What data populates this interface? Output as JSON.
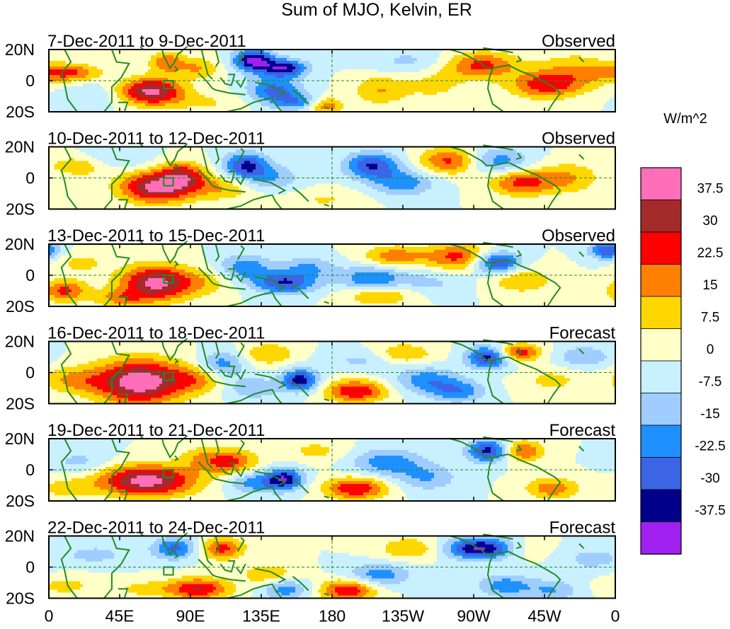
{
  "chart_data": {
    "type": "heatmap",
    "title": "Sum of MJO, Kelvin, ER",
    "colorbar": {
      "unit": "W/m^2",
      "levels": [
        "37.5",
        "30",
        "22.5",
        "15",
        "7.5",
        "0",
        "-7.5",
        "-15",
        "-22.5",
        "-30",
        "-37.5"
      ],
      "colors": [
        "#ff6eb9",
        "#a52a2a",
        "#ff0000",
        "#ff7f00",
        "#ffd700",
        "#ffffc8",
        "#c8f0ff",
        "#a0cdff",
        "#1e90ff",
        "#3c64e6",
        "#00008b",
        "#a020f0"
      ]
    },
    "x_axis": {
      "lon_range": [
        0,
        360
      ],
      "ticks": [
        {
          "lon": 0,
          "label": "0"
        },
        {
          "lon": 45,
          "label": "45E"
        },
        {
          "lon": 90,
          "label": "90E"
        },
        {
          "lon": 135,
          "label": "135E"
        },
        {
          "lon": 180,
          "label": "180"
        },
        {
          "lon": 225,
          "label": "135W"
        },
        {
          "lon": 270,
          "label": "90W"
        },
        {
          "lon": 315,
          "label": "45W"
        },
        {
          "lon": 360,
          "label": "0"
        }
      ]
    },
    "y_axis": {
      "lat_range": [
        -20,
        20
      ],
      "ticks": [
        {
          "lat": 20,
          "label": "20N"
        },
        {
          "lat": 0,
          "label": "0"
        },
        {
          "lat": -20,
          "label": "20S"
        }
      ]
    },
    "panels": [
      {
        "dates": "7-Dec-2011 to 9-Dec-2011",
        "status": "Observed",
        "blobs": [
          [
            65,
            -7,
            14,
            6,
            40
          ],
          [
            12,
            5,
            14,
            4,
            25
          ],
          [
            75,
            12,
            8,
            5,
            20
          ],
          [
            95,
            8,
            10,
            5,
            15
          ],
          [
            130,
            13,
            9,
            5,
            -40
          ],
          [
            150,
            8,
            10,
            4,
            -35
          ],
          [
            143,
            -6,
            12,
            6,
            -25
          ],
          [
            160,
            -14,
            12,
            4,
            -20
          ],
          [
            175,
            -16,
            8,
            4,
            25
          ],
          [
            210,
            -6,
            12,
            7,
            15
          ],
          [
            245,
            -2,
            14,
            8,
            10
          ],
          [
            275,
            10,
            16,
            6,
            25
          ],
          [
            315,
            -3,
            16,
            6,
            25
          ],
          [
            335,
            6,
            18,
            8,
            15
          ],
          [
            25,
            -10,
            14,
            6,
            -8
          ],
          [
            230,
            12,
            18,
            6,
            -10
          ],
          [
            100,
            -14,
            18,
            5,
            8
          ]
        ]
      },
      {
        "dates": "10-Dec-2011 to 12-Dec-2011",
        "status": "Observed",
        "blobs": [
          [
            68,
            -6,
            16,
            7,
            40
          ],
          [
            85,
            2,
            10,
            6,
            25
          ],
          [
            20,
            8,
            14,
            5,
            15
          ],
          [
            110,
            -6,
            16,
            6,
            15
          ],
          [
            125,
            8,
            10,
            6,
            -30
          ],
          [
            140,
            0,
            14,
            6,
            -15
          ],
          [
            205,
            8,
            12,
            6,
            -30
          ],
          [
            225,
            -3,
            14,
            6,
            -20
          ],
          [
            255,
            11,
            14,
            6,
            25
          ],
          [
            285,
            11,
            14,
            6,
            -20
          ],
          [
            300,
            -3,
            14,
            6,
            25
          ],
          [
            330,
            0,
            14,
            7,
            15
          ],
          [
            40,
            12,
            16,
            5,
            -10
          ],
          [
            175,
            -14,
            18,
            5,
            8
          ]
        ]
      },
      {
        "dates": "13-Dec-2011 to 15-Dec-2011",
        "status": "Observed",
        "blobs": [
          [
            68,
            -5,
            16,
            8,
            40
          ],
          [
            10,
            -10,
            10,
            5,
            25
          ],
          [
            20,
            8,
            12,
            5,
            10
          ],
          [
            45,
            -15,
            12,
            4,
            15
          ],
          [
            100,
            -5,
            14,
            6,
            10
          ],
          [
            125,
            5,
            12,
            6,
            -20
          ],
          [
            150,
            -5,
            14,
            5,
            -30
          ],
          [
            165,
            5,
            12,
            5,
            -15
          ],
          [
            205,
            -3,
            14,
            6,
            -25
          ],
          [
            220,
            12,
            14,
            5,
            20
          ],
          [
            210,
            -12,
            16,
            5,
            20
          ],
          [
            260,
            12,
            14,
            6,
            25
          ],
          [
            285,
            8,
            10,
            5,
            -35
          ],
          [
            300,
            -3,
            14,
            6,
            15
          ],
          [
            355,
            16,
            8,
            4,
            -30
          ],
          [
            240,
            -5,
            16,
            6,
            -10
          ]
        ]
      },
      {
        "dates": "16-Dec-2011 to 18-Dec-2011",
        "status": "Forecast",
        "blobs": [
          [
            58,
            -6,
            20,
            10,
            45
          ],
          [
            15,
            -5,
            14,
            6,
            15
          ],
          [
            95,
            -4,
            12,
            6,
            15
          ],
          [
            110,
            5,
            10,
            6,
            -20
          ],
          [
            140,
            12,
            12,
            5,
            15
          ],
          [
            160,
            -5,
            8,
            5,
            -35
          ],
          [
            130,
            -10,
            12,
            5,
            -15
          ],
          [
            195,
            -12,
            14,
            5,
            30
          ],
          [
            225,
            12,
            14,
            5,
            15
          ],
          [
            240,
            -5,
            14,
            6,
            -20
          ],
          [
            260,
            -12,
            12,
            5,
            -20
          ],
          [
            280,
            10,
            10,
            5,
            -35
          ],
          [
            298,
            13,
            10,
            4,
            30
          ],
          [
            320,
            -5,
            14,
            6,
            10
          ],
          [
            340,
            10,
            12,
            5,
            -15
          ],
          [
            200,
            8,
            16,
            5,
            -10
          ]
        ]
      },
      {
        "dates": "19-Dec-2011 to 21-Dec-2011",
        "status": "Forecast",
        "blobs": [
          [
            62,
            -7,
            22,
            7,
            42
          ],
          [
            115,
            5,
            12,
            6,
            25
          ],
          [
            95,
            8,
            10,
            5,
            10
          ],
          [
            130,
            -8,
            12,
            5,
            -20
          ],
          [
            150,
            -6,
            8,
            5,
            -35
          ],
          [
            195,
            -12,
            14,
            5,
            30
          ],
          [
            215,
            5,
            16,
            6,
            -20
          ],
          [
            240,
            -5,
            14,
            6,
            -15
          ],
          [
            280,
            12,
            10,
            5,
            -35
          ],
          [
            300,
            12,
            10,
            5,
            25
          ],
          [
            320,
            -12,
            12,
            5,
            20
          ],
          [
            20,
            5,
            14,
            6,
            -10
          ],
          [
            10,
            -12,
            12,
            5,
            10
          ],
          [
            170,
            12,
            14,
            5,
            10
          ]
        ]
      },
      {
        "dates": "22-Dec-2011 to 24-Dec-2011",
        "status": "Forecast",
        "blobs": [
          [
            95,
            -14,
            14,
            5,
            30
          ],
          [
            110,
            12,
            10,
            5,
            25
          ],
          [
            80,
            12,
            10,
            5,
            -25
          ],
          [
            140,
            -5,
            12,
            5,
            15
          ],
          [
            150,
            -14,
            10,
            5,
            -20
          ],
          [
            190,
            -15,
            12,
            5,
            30
          ],
          [
            210,
            -5,
            14,
            5,
            -20
          ],
          [
            230,
            12,
            14,
            5,
            15
          ],
          [
            275,
            12,
            16,
            5,
            -40
          ],
          [
            300,
            12,
            12,
            5,
            10
          ],
          [
            290,
            -12,
            12,
            5,
            -20
          ],
          [
            320,
            -15,
            12,
            5,
            -15
          ],
          [
            10,
            -12,
            14,
            5,
            10
          ],
          [
            30,
            8,
            16,
            5,
            -10
          ],
          [
            60,
            -14,
            14,
            4,
            10
          ],
          [
            345,
            5,
            14,
            6,
            -10
          ]
        ]
      }
    ]
  }
}
